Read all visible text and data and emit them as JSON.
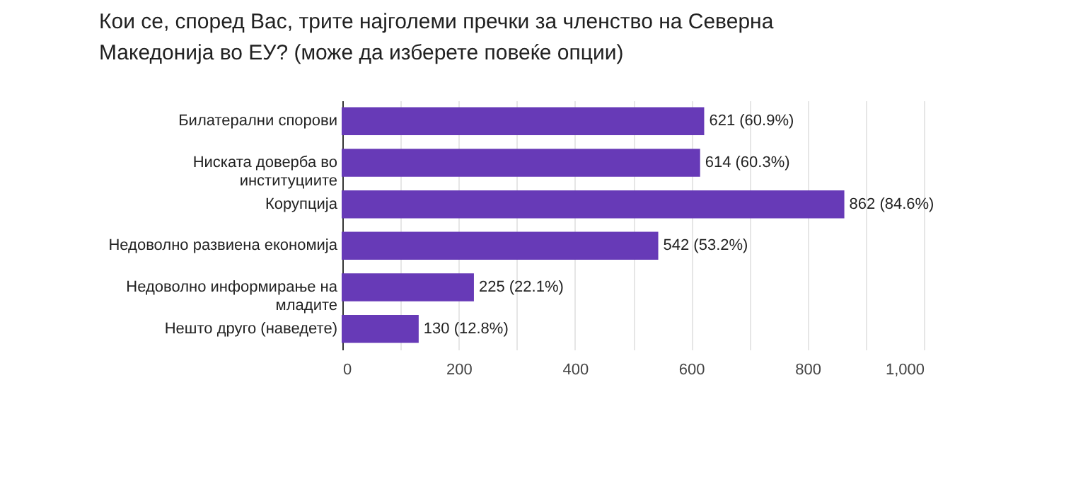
{
  "chart_data": {
    "type": "bar",
    "orientation": "horizontal",
    "title": "Кои се, според Вас, трите најголеми пречки за членство на Северна Македонија во ЕУ?  (може да изберете повеќе опции)",
    "categories": [
      "Билатерални спорови",
      "Ниската доверба во институциите",
      "Корупција",
      "Недоволно развиена економија",
      "Недоволно информирање на младите",
      "Нешто друго (наведете)"
    ],
    "values": [
      621,
      614,
      862,
      542,
      225,
      130
    ],
    "value_labels": [
      "621 (60.9%)",
      "614 (60.3%)",
      "862 (84.6%)",
      "542 (53.2%)",
      "225 (22.1%)",
      "130 (12.8%)"
    ],
    "color": "#673ab7",
    "xlim": [
      0,
      1000
    ],
    "xticks": [
      0,
      {
        "value": 100,
        "label": null
      },
      200,
      {
        "value": 300,
        "label": null
      },
      400,
      {
        "value": 500,
        "label": null
      },
      600,
      {
        "value": 700,
        "label": null
      },
      800,
      {
        "value": 900,
        "label": null
      },
      {
        "value": 1000,
        "label": "1,000"
      }
    ],
    "grid": "x"
  }
}
